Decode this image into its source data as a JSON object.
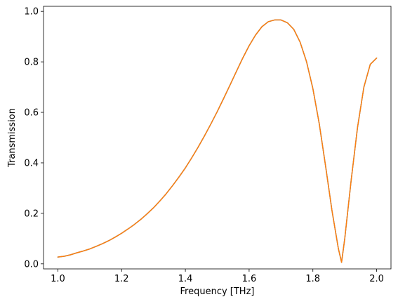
{
  "chart_data": {
    "type": "line",
    "title": "",
    "xlabel": "Frequency [THz]",
    "ylabel": "Transmission",
    "xlim": [
      0.955,
      2.045
    ],
    "ylim": [
      -0.02,
      1.02
    ],
    "grid": false,
    "legend": "none",
    "x_ticks": [
      1.0,
      1.2,
      1.4,
      1.6,
      1.8,
      2.0
    ],
    "x_tick_labels": [
      "1.0",
      "1.2",
      "1.4",
      "1.6",
      "1.8",
      "2.0"
    ],
    "y_ticks": [
      0.0,
      0.2,
      0.4,
      0.6,
      0.8,
      1.0
    ],
    "y_tick_labels": [
      "0.0",
      "0.2",
      "0.4",
      "0.6",
      "0.8",
      "1.0"
    ],
    "series": [
      {
        "color": "#1f77b4",
        "x": [
          1.0,
          1.02,
          1.04,
          1.06,
          1.08,
          1.1,
          1.12,
          1.14,
          1.16,
          1.18,
          1.2,
          1.22,
          1.24,
          1.26,
          1.28,
          1.3,
          1.32,
          1.34,
          1.36,
          1.38,
          1.4,
          1.42,
          1.44,
          1.46,
          1.48,
          1.5,
          1.52,
          1.54,
          1.56,
          1.58,
          1.6,
          1.62,
          1.64,
          1.66,
          1.68,
          1.7,
          1.72,
          1.74,
          1.76,
          1.78,
          1.8,
          1.82,
          1.84,
          1.86,
          1.88,
          1.89,
          1.9,
          1.92,
          1.94,
          1.96,
          1.98,
          2.0
        ],
        "y": [
          0.027,
          0.03,
          0.036,
          0.044,
          0.051,
          0.059,
          0.069,
          0.08,
          0.092,
          0.106,
          0.121,
          0.138,
          0.156,
          0.176,
          0.198,
          0.222,
          0.249,
          0.278,
          0.31,
          0.344,
          0.38,
          0.42,
          0.462,
          0.507,
          0.554,
          0.603,
          0.655,
          0.708,
          0.762,
          0.815,
          0.864,
          0.906,
          0.939,
          0.959,
          0.966,
          0.966,
          0.955,
          0.929,
          0.878,
          0.801,
          0.694,
          0.555,
          0.386,
          0.21,
          0.06,
          0.006,
          0.1,
          0.33,
          0.54,
          0.7,
          0.79,
          0.815
        ]
      },
      {
        "color": "#ff7f0e",
        "x": [
          1.0,
          1.02,
          1.04,
          1.06,
          1.08,
          1.1,
          1.12,
          1.14,
          1.16,
          1.18,
          1.2,
          1.22,
          1.24,
          1.26,
          1.28,
          1.3,
          1.32,
          1.34,
          1.36,
          1.38,
          1.4,
          1.42,
          1.44,
          1.46,
          1.48,
          1.5,
          1.52,
          1.54,
          1.56,
          1.58,
          1.6,
          1.62,
          1.64,
          1.66,
          1.68,
          1.7,
          1.72,
          1.74,
          1.76,
          1.78,
          1.8,
          1.82,
          1.84,
          1.86,
          1.88,
          1.89,
          1.9,
          1.92,
          1.94,
          1.96,
          1.98,
          2.0
        ],
        "y": [
          0.027,
          0.03,
          0.036,
          0.044,
          0.051,
          0.059,
          0.069,
          0.08,
          0.092,
          0.106,
          0.121,
          0.138,
          0.156,
          0.176,
          0.198,
          0.222,
          0.249,
          0.278,
          0.31,
          0.344,
          0.38,
          0.42,
          0.462,
          0.507,
          0.554,
          0.603,
          0.655,
          0.708,
          0.762,
          0.815,
          0.864,
          0.906,
          0.939,
          0.959,
          0.966,
          0.966,
          0.955,
          0.929,
          0.878,
          0.801,
          0.694,
          0.555,
          0.386,
          0.21,
          0.06,
          0.006,
          0.1,
          0.33,
          0.54,
          0.7,
          0.79,
          0.815
        ]
      }
    ]
  }
}
